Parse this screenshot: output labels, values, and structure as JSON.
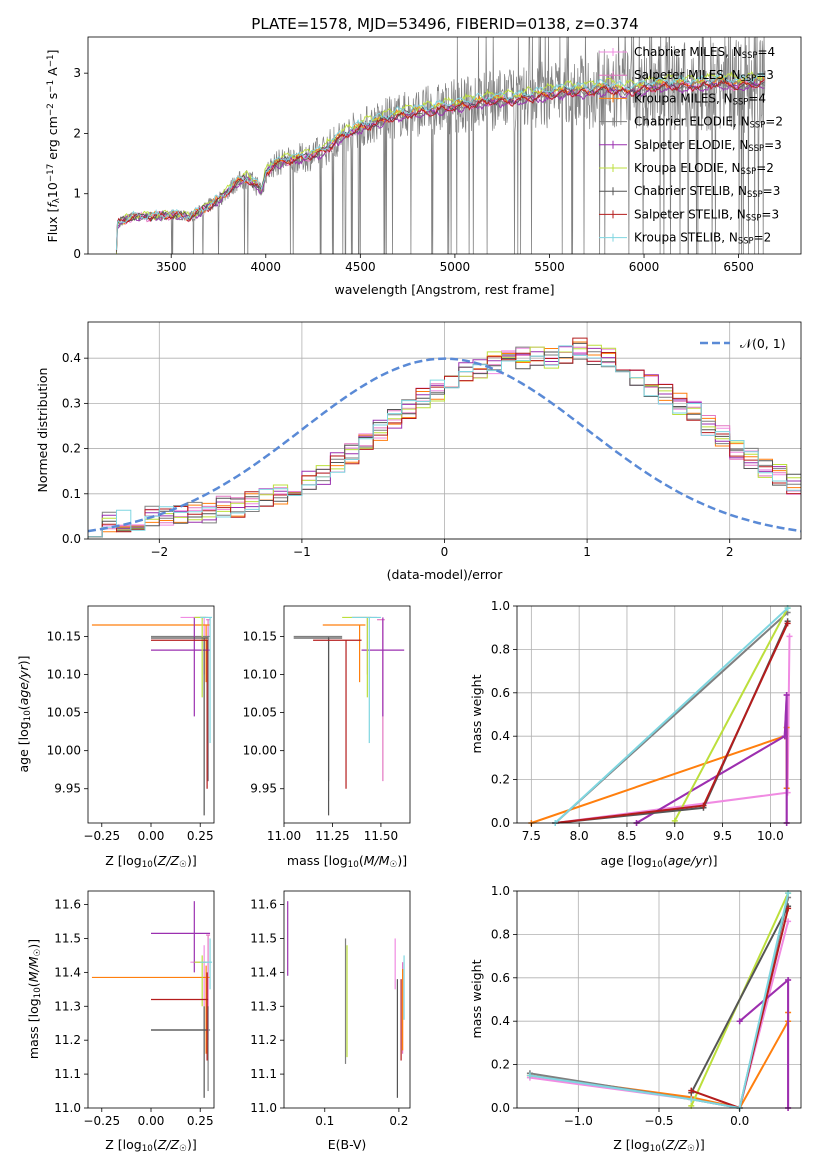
{
  "title": "PLATE=1578, MJD=53496, FIBERID=0138, z=0.374",
  "colors": {
    "chabrier_miles": "#f08be2",
    "salpeter_miles": "#e377c2",
    "kroupa_miles": "#ff7f0e",
    "chabrier_elodie": "#7f7f7f",
    "salpeter_elodie": "#9b30b0",
    "kroupa_elodie": "#bcdf3c",
    "chabrier_stelib": "#555555",
    "salpeter_stelib": "#b41d1d",
    "kroupa_stelib": "#7fd6e0",
    "gaussian": "#5a8ad6",
    "data": "#808080"
  },
  "legend_spectrum": [
    {
      "pre": "Chabrier MILES, N",
      "sub": "SSP",
      "post": "=4",
      "color": "#f08be2"
    },
    {
      "pre": "Salpeter MILES, N",
      "sub": "SSP",
      "post": "=3",
      "color": "#e377c2"
    },
    {
      "pre": "Kroupa MILES, N",
      "sub": "SSP",
      "post": "=4",
      "color": "#ff7f0e"
    },
    {
      "pre": "Chabrier ELODIE, N",
      "sub": "SSP",
      "post": "=2",
      "color": "#7f7f7f"
    },
    {
      "pre": "Salpeter ELODIE, N",
      "sub": "SSP",
      "post": "=3",
      "color": "#9b30b0"
    },
    {
      "pre": "Kroupa ELODIE, N",
      "sub": "SSP",
      "post": "=2",
      "color": "#bcdf3c"
    },
    {
      "pre": "Chabrier STELIB, N",
      "sub": "SSP",
      "post": "=3",
      "color": "#555555"
    },
    {
      "pre": "Salpeter STELIB, N",
      "sub": "SSP",
      "post": "=3",
      "color": "#b41d1d"
    },
    {
      "pre": "Kroupa STELIB, N",
      "sub": "SSP",
      "post": "=2",
      "color": "#7fd6e0"
    }
  ],
  "legend_gauss": "𝒩(0, 1)",
  "chart_data": [
    {
      "id": "spectrum",
      "type": "line",
      "xlabel": "wavelength [Angstrom, rest frame]",
      "ylabel": "Flux [f_λ 10^-17 erg cm^-2 s^-1 A^-1]",
      "xlim": [
        3060,
        6830
      ],
      "ylim": [
        0,
        3.6
      ],
      "xticks": [
        3500,
        4000,
        4500,
        5000,
        5500,
        6000,
        6500
      ],
      "yticks": [
        0,
        1,
        2,
        3
      ],
      "continuum": [
        [
          3210,
          0.05
        ],
        [
          3215,
          0.5
        ],
        [
          3240,
          0.55
        ],
        [
          3300,
          0.62
        ],
        [
          3400,
          0.62
        ],
        [
          3500,
          0.65
        ],
        [
          3600,
          0.62
        ],
        [
          3650,
          0.7
        ],
        [
          3700,
          0.8
        ],
        [
          3750,
          0.9
        ],
        [
          3800,
          1.05
        ],
        [
          3850,
          1.2
        ],
        [
          3900,
          1.25
        ],
        [
          3950,
          1.15
        ],
        [
          3980,
          1.05
        ],
        [
          4000,
          1.35
        ],
        [
          4050,
          1.5
        ],
        [
          4100,
          1.55
        ],
        [
          4200,
          1.6
        ],
        [
          4300,
          1.7
        ],
        [
          4400,
          1.95
        ],
        [
          4500,
          2.1
        ],
        [
          4600,
          2.2
        ],
        [
          4700,
          2.3
        ],
        [
          4800,
          2.35
        ],
        [
          4900,
          2.4
        ],
        [
          5000,
          2.45
        ],
        [
          5100,
          2.5
        ],
        [
          5200,
          2.55
        ],
        [
          5300,
          2.55
        ],
        [
          5400,
          2.6
        ],
        [
          5500,
          2.65
        ],
        [
          5600,
          2.7
        ],
        [
          5700,
          2.7
        ],
        [
          5800,
          2.75
        ],
        [
          5900,
          2.7
        ],
        [
          6000,
          2.75
        ],
        [
          6100,
          2.8
        ],
        [
          6200,
          2.8
        ],
        [
          6300,
          2.8
        ],
        [
          6400,
          2.85
        ],
        [
          6500,
          2.8
        ],
        [
          6600,
          2.85
        ],
        [
          6640,
          2.85
        ]
      ],
      "model_scale": [
        1.0,
        0.99,
        1.01,
        1.0,
        0.98,
        1.04,
        1.0,
        0.99,
        1.03
      ]
    },
    {
      "id": "residuals",
      "type": "line",
      "xlabel": "(data-model)/error",
      "ylabel": "Normed distribution",
      "xlim": [
        -2.5,
        2.5
      ],
      "ylim": [
        0,
        0.48
      ],
      "xticks": [
        -2,
        -1,
        0,
        1,
        2
      ],
      "yticks": [
        0.0,
        0.1,
        0.2,
        0.3,
        0.4
      ],
      "bin_edges_start": -2.5,
      "bin_width": 0.1,
      "hist": [
        0.03,
        0.04,
        0.04,
        0.04,
        0.05,
        0.05,
        0.05,
        0.06,
        0.06,
        0.07,
        0.07,
        0.08,
        0.09,
        0.1,
        0.11,
        0.13,
        0.14,
        0.17,
        0.19,
        0.22,
        0.24,
        0.27,
        0.29,
        0.31,
        0.33,
        0.35,
        0.37,
        0.38,
        0.39,
        0.4,
        0.4,
        0.4,
        0.4,
        0.41,
        0.42,
        0.41,
        0.4,
        0.38,
        0.36,
        0.34,
        0.32,
        0.3,
        0.28,
        0.25,
        0.23,
        0.2,
        0.18,
        0.16,
        0.14,
        0.12
      ]
    },
    {
      "id": "age_vs_Z",
      "type": "scatter",
      "xlabel": "Z [log10(Z/Z☉)]",
      "ylabel": "age [log10(age/yr)]",
      "xlim": [
        -0.32,
        0.32
      ],
      "ylim": [
        9.905,
        10.19
      ],
      "xticks": [
        -0.25,
        0.0,
        0.25
      ],
      "yticks": [
        9.95,
        10.0,
        10.05,
        10.1,
        10.15
      ],
      "points": [
        {
          "x": 0.27,
          "y": 10.175,
          "xl": 0.15,
          "xh": 0.29,
          "yl": 10.1,
          "yh": 10.175,
          "c": "#f08be2"
        },
        {
          "x": 0.29,
          "y": 10.172,
          "xl": 0.28,
          "xh": 0.3,
          "yl": 9.96,
          "yh": 10.172,
          "c": "#e377c2"
        },
        {
          "x": 0.28,
          "y": 10.165,
          "xl": -0.3,
          "xh": 0.3,
          "yl": 10.09,
          "yh": 10.165,
          "c": "#ff7f0e"
        },
        {
          "x": 0.29,
          "y": 10.15,
          "xl": 0.0,
          "xh": 0.3,
          "yl": 9.96,
          "yh": 10.15,
          "c": "#7f7f7f"
        },
        {
          "x": 0.22,
          "y": 10.132,
          "xl": 0.0,
          "xh": 0.3,
          "yl": 10.045,
          "yh": 10.175,
          "c": "#9b30b0"
        },
        {
          "x": 0.26,
          "y": 10.175,
          "xl": 0.22,
          "xh": 0.28,
          "yl": 10.07,
          "yh": 10.175,
          "c": "#bcdf3c"
        },
        {
          "x": 0.27,
          "y": 10.148,
          "xl": 0.0,
          "xh": 0.29,
          "yl": 9.915,
          "yh": 10.148,
          "c": "#555555"
        },
        {
          "x": 0.285,
          "y": 10.145,
          "xl": 0.0,
          "xh": 0.29,
          "yl": 9.95,
          "yh": 10.145,
          "c": "#b41d1d"
        },
        {
          "x": 0.3,
          "y": 10.175,
          "xl": 0.25,
          "xh": 0.31,
          "yl": 10.01,
          "yh": 10.175,
          "c": "#7fd6e0"
        }
      ]
    },
    {
      "id": "age_vs_mass",
      "type": "scatter",
      "xlabel": "mass [log10(M/M☉)]",
      "ylabel": "",
      "xlim": [
        11.0,
        11.65
      ],
      "ylim": [
        9.905,
        10.19
      ],
      "xticks": [
        11.0,
        11.25,
        11.5
      ],
      "yticks": [
        9.95,
        10.0,
        10.05,
        10.1,
        10.15
      ],
      "points": [
        {
          "x": 11.43,
          "y": 10.175,
          "xl": 11.35,
          "xh": 11.48,
          "yl": 10.1,
          "yh": 10.175,
          "c": "#f08be2"
        },
        {
          "x": 11.51,
          "y": 10.172,
          "xl": 11.48,
          "xh": 11.52,
          "yl": 9.96,
          "yh": 10.172,
          "c": "#e377c2"
        },
        {
          "x": 11.39,
          "y": 10.165,
          "xl": 11.2,
          "xh": 11.42,
          "yl": 10.09,
          "yh": 10.165,
          "c": "#ff7f0e"
        },
        {
          "x": 11.23,
          "y": 10.15,
          "xl": 11.05,
          "xh": 11.3,
          "yl": 9.96,
          "yh": 10.15,
          "c": "#7f7f7f"
        },
        {
          "x": 11.51,
          "y": 10.132,
          "xl": 11.4,
          "xh": 11.62,
          "yl": 10.045,
          "yh": 10.175,
          "c": "#9b30b0"
        },
        {
          "x": 11.43,
          "y": 10.175,
          "xl": 11.3,
          "xh": 11.45,
          "yl": 10.07,
          "yh": 10.175,
          "c": "#bcdf3c"
        },
        {
          "x": 11.23,
          "y": 10.148,
          "xl": 11.05,
          "xh": 11.3,
          "yl": 9.915,
          "yh": 10.148,
          "c": "#555555"
        },
        {
          "x": 11.32,
          "y": 10.145,
          "xl": 11.15,
          "xh": 11.4,
          "yl": 9.95,
          "yh": 10.145,
          "c": "#b41d1d"
        },
        {
          "x": 11.44,
          "y": 10.175,
          "xl": 11.35,
          "xh": 11.5,
          "yl": 10.01,
          "yh": 10.175,
          "c": "#7fd6e0"
        }
      ]
    },
    {
      "id": "weight_vs_age",
      "type": "line",
      "xlabel": "age [log10(age/yr)]",
      "ylabel": "mass weight",
      "xlim": [
        7.35,
        10.32
      ],
      "ylim": [
        0,
        1
      ],
      "xticks": [
        7.5,
        8.0,
        8.5,
        9.0,
        9.5,
        10.0
      ],
      "yticks": [
        0.0,
        0.2,
        0.4,
        0.6,
        0.8,
        1.0
      ],
      "series": [
        {
          "c": "#f08be2",
          "pts": [
            [
              7.75,
              0.0
            ],
            [
              10.18,
              0.14
            ],
            [
              10.2,
              0.86
            ]
          ]
        },
        {
          "c": "#e377c2",
          "pts": [
            [
              8.6,
              0.0
            ],
            [
              10.15,
              0.4
            ],
            [
              10.17,
              0.59
            ],
            [
              10.17,
              0.0
            ]
          ]
        },
        {
          "c": "#ff7f0e",
          "pts": [
            [
              7.5,
              0.0
            ],
            [
              10.15,
              0.4
            ],
            [
              10.17,
              0.44
            ],
            [
              10.17,
              0.16
            ]
          ]
        },
        {
          "c": "#7f7f7f",
          "pts": [
            [
              7.75,
              0.0
            ],
            [
              10.18,
              0.97
            ]
          ]
        },
        {
          "c": "#9b30b0",
          "pts": [
            [
              8.6,
              0.0
            ],
            [
              10.15,
              0.4
            ],
            [
              10.17,
              0.59
            ],
            [
              10.17,
              0.0
            ]
          ]
        },
        {
          "c": "#bcdf3c",
          "pts": [
            [
              9.0,
              0.01
            ],
            [
              10.18,
              0.99
            ]
          ]
        },
        {
          "c": "#555555",
          "pts": [
            [
              7.75,
              0.0
            ],
            [
              9.3,
              0.07
            ],
            [
              10.18,
              0.93
            ]
          ]
        },
        {
          "c": "#b41d1d",
          "pts": [
            [
              7.75,
              0.0
            ],
            [
              9.3,
              0.08
            ],
            [
              10.18,
              0.92
            ]
          ]
        },
        {
          "c": "#7fd6e0",
          "pts": [
            [
              7.75,
              0.0
            ],
            [
              10.18,
              0.99
            ]
          ]
        }
      ]
    },
    {
      "id": "mass_vs_Z",
      "type": "scatter",
      "xlabel": "Z [log10(Z/Z☉)]",
      "ylabel": "mass [log10(M/M☉)]",
      "xlim": [
        -0.32,
        0.32
      ],
      "ylim": [
        11.0,
        11.64
      ],
      "xticks": [
        -0.25,
        0.0,
        0.25
      ],
      "yticks": [
        11.0,
        11.1,
        11.2,
        11.3,
        11.4,
        11.5,
        11.6
      ],
      "points": [
        {
          "x": 0.27,
          "y": 11.43,
          "xl": 0.2,
          "xh": 0.29,
          "yl": 11.3,
          "yh": 11.48,
          "c": "#f08be2"
        },
        {
          "x": 0.29,
          "y": 11.51,
          "xl": 0.28,
          "xh": 0.3,
          "yl": 11.2,
          "yh": 11.51,
          "c": "#e377c2"
        },
        {
          "x": 0.28,
          "y": 11.385,
          "xl": -0.3,
          "xh": 0.3,
          "yl": 11.16,
          "yh": 11.42,
          "c": "#ff7f0e"
        },
        {
          "x": 0.29,
          "y": 11.23,
          "xl": 0.0,
          "xh": 0.3,
          "yl": 11.05,
          "yh": 11.3,
          "c": "#7f7f7f"
        },
        {
          "x": 0.22,
          "y": 11.515,
          "xl": 0.0,
          "xh": 0.3,
          "yl": 11.4,
          "yh": 11.61,
          "c": "#9b30b0"
        },
        {
          "x": 0.26,
          "y": 11.43,
          "xl": 0.22,
          "xh": 0.28,
          "yl": 11.3,
          "yh": 11.45,
          "c": "#bcdf3c"
        },
        {
          "x": 0.27,
          "y": 11.23,
          "xl": 0.0,
          "xh": 0.29,
          "yl": 11.03,
          "yh": 11.3,
          "c": "#555555"
        },
        {
          "x": 0.285,
          "y": 11.32,
          "xl": 0.0,
          "xh": 0.29,
          "yl": 11.14,
          "yh": 11.4,
          "c": "#b41d1d"
        },
        {
          "x": 0.3,
          "y": 11.43,
          "xl": 0.25,
          "xh": 0.31,
          "yl": 11.35,
          "yh": 11.5,
          "c": "#7fd6e0"
        }
      ]
    },
    {
      "id": "mass_vs_EBV",
      "type": "scatter",
      "xlabel": "E(B-V)",
      "ylabel": "",
      "xlim": [
        0.045,
        0.215
      ],
      "ylim": [
        11.0,
        11.64
      ],
      "xticks": [
        0.1,
        0.2
      ],
      "yticks": [
        11.0,
        11.1,
        11.2,
        11.3,
        11.4,
        11.5,
        11.6
      ],
      "points": [
        {
          "x": 0.195,
          "y": 11.43,
          "yl": 11.35,
          "yh": 11.5,
          "c": "#f08be2"
        },
        {
          "x": 0.205,
          "y": 11.3,
          "yl": 11.16,
          "yh": 11.43,
          "c": "#e377c2"
        },
        {
          "x": 0.205,
          "y": 11.3,
          "yl": 11.17,
          "yh": 11.41,
          "c": "#ff7f0e"
        },
        {
          "x": 0.128,
          "y": 11.3,
          "yl": 11.13,
          "yh": 11.5,
          "c": "#7f7f7f"
        },
        {
          "x": 0.05,
          "y": 11.5,
          "yl": 11.39,
          "yh": 11.61,
          "c": "#9b30b0"
        },
        {
          "x": 0.13,
          "y": 11.35,
          "yl": 11.15,
          "yh": 11.48,
          "c": "#bcdf3c"
        },
        {
          "x": 0.198,
          "y": 11.2,
          "yl": 11.03,
          "yh": 11.38,
          "c": "#555555"
        },
        {
          "x": 0.203,
          "y": 11.25,
          "yl": 11.14,
          "yh": 11.38,
          "c": "#b41d1d"
        },
        {
          "x": 0.207,
          "y": 11.38,
          "yl": 11.26,
          "yh": 11.45,
          "c": "#7fd6e0"
        }
      ]
    },
    {
      "id": "weight_vs_Z",
      "type": "line",
      "xlabel": "Z [log10(Z/Z☉)]",
      "ylabel": "mass weight",
      "xlim": [
        -1.38,
        0.38
      ],
      "ylim": [
        0,
        1
      ],
      "xticks": [
        -1.0,
        -0.5,
        0.0
      ],
      "yticks": [
        0.0,
        0.2,
        0.4,
        0.6,
        0.8,
        1.0
      ],
      "series": [
        {
          "c": "#f08be2",
          "pts": [
            [
              -1.3,
              0.14
            ],
            [
              -0.3,
              0.04
            ],
            [
              0.0,
              0.0
            ],
            [
              0.3,
              0.86
            ]
          ]
        },
        {
          "c": "#e377c2",
          "pts": [
            [
              0.0,
              0.4
            ],
            [
              0.3,
              0.59
            ],
            [
              0.3,
              0.0
            ]
          ]
        },
        {
          "c": "#ff7f0e",
          "pts": [
            [
              -1.3,
              0.15
            ],
            [
              -0.3,
              0.05
            ],
            [
              0.0,
              0.0
            ],
            [
              0.3,
              0.4
            ],
            [
              0.3,
              0.44
            ]
          ]
        },
        {
          "c": "#7f7f7f",
          "pts": [
            [
              -1.3,
              0.16
            ],
            [
              -0.3,
              0.04
            ],
            [
              0.0,
              0.0
            ],
            [
              0.3,
              0.97
            ]
          ]
        },
        {
          "c": "#9b30b0",
          "pts": [
            [
              0.0,
              0.4
            ],
            [
              0.3,
              0.59
            ],
            [
              0.3,
              0.0
            ]
          ]
        },
        {
          "c": "#bcdf3c",
          "pts": [
            [
              -0.3,
              0.01
            ],
            [
              0.3,
              0.99
            ]
          ]
        },
        {
          "c": "#555555",
          "pts": [
            [
              -0.3,
              0.07
            ],
            [
              0.3,
              0.93
            ]
          ]
        },
        {
          "c": "#b41d1d",
          "pts": [
            [
              -0.3,
              0.08
            ],
            [
              0.0,
              0.0
            ],
            [
              0.3,
              0.92
            ]
          ]
        },
        {
          "c": "#7fd6e0",
          "pts": [
            [
              -1.3,
              0.15
            ],
            [
              -0.3,
              0.04
            ],
            [
              0.0,
              0.0
            ],
            [
              0.3,
              0.99
            ]
          ]
        }
      ]
    }
  ]
}
